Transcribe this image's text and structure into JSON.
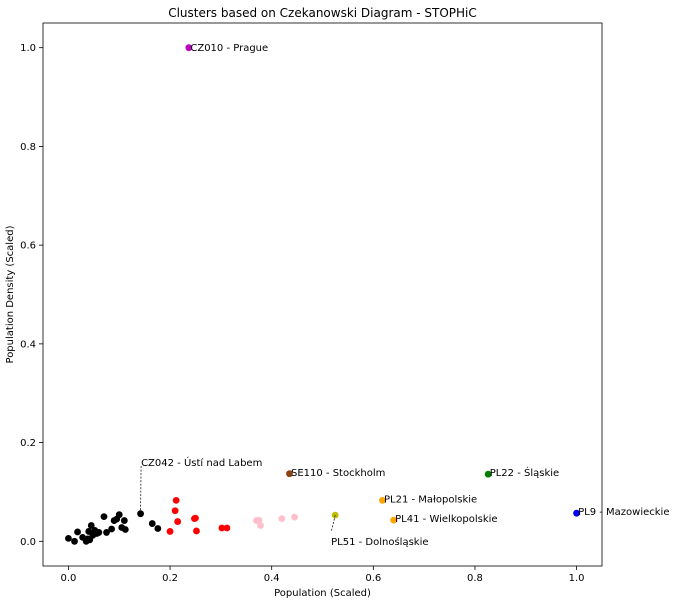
{
  "chart_data": {
    "type": "scatter",
    "title": "Clusters based on Czekanowski Diagram - STOPHiC",
    "xlabel": "Population (Scaled)",
    "ylabel": "Population Density (Scaled)",
    "xlim": [
      -0.05,
      1.05
    ],
    "ylim": [
      -0.05,
      1.05
    ],
    "x_ticks": [
      "0.0",
      "0.2",
      "0.4",
      "0.6",
      "0.8",
      "1.0"
    ],
    "y_ticks": [
      "0.0",
      "0.2",
      "0.4",
      "0.6",
      "0.8",
      "1.0"
    ],
    "grid": false,
    "series": [
      {
        "color": "#000000",
        "points": [
          [
            0.0,
            0.006
          ],
          [
            0.012,
            0.0
          ],
          [
            0.018,
            0.019
          ],
          [
            0.028,
            0.008
          ],
          [
            0.035,
            0.0
          ],
          [
            0.038,
            0.005
          ],
          [
            0.04,
            0.02
          ],
          [
            0.042,
            0.003
          ],
          [
            0.045,
            0.032
          ],
          [
            0.048,
            0.012
          ],
          [
            0.052,
            0.022
          ],
          [
            0.056,
            0.016
          ],
          [
            0.06,
            0.018
          ],
          [
            0.07,
            0.05
          ],
          [
            0.075,
            0.018
          ],
          [
            0.085,
            0.025
          ],
          [
            0.09,
            0.042
          ],
          [
            0.095,
            0.045
          ],
          [
            0.1,
            0.054
          ],
          [
            0.105,
            0.028
          ],
          [
            0.11,
            0.042
          ],
          [
            0.112,
            0.024
          ],
          [
            0.142,
            0.056
          ],
          [
            0.165,
            0.036
          ],
          [
            0.176,
            0.026
          ]
        ]
      },
      {
        "color": "#ff0000",
        "points": [
          [
            0.2,
            0.02
          ],
          [
            0.21,
            0.062
          ],
          [
            0.212,
            0.083
          ],
          [
            0.215,
            0.04
          ],
          [
            0.248,
            0.046
          ],
          [
            0.25,
            0.047
          ],
          [
            0.252,
            0.021
          ],
          [
            0.302,
            0.027
          ],
          [
            0.312,
            0.027
          ]
        ]
      },
      {
        "color": "#ffc0cb",
        "points": [
          [
            0.37,
            0.042
          ],
          [
            0.375,
            0.043
          ],
          [
            0.378,
            0.032
          ],
          [
            0.42,
            0.046
          ],
          [
            0.445,
            0.049
          ]
        ]
      },
      {
        "color": "#bf00bf",
        "points": [
          [
            0.237,
            1.0
          ]
        ]
      },
      {
        "color": "#8b4513",
        "points": [
          [
            0.435,
            0.137
          ]
        ]
      },
      {
        "color": "#bfbf00",
        "points": [
          [
            0.525,
            0.053
          ]
        ]
      },
      {
        "color": "#ffa500",
        "points": [
          [
            0.618,
            0.083
          ],
          [
            0.64,
            0.043
          ]
        ]
      },
      {
        "color": "#008000",
        "points": [
          [
            0.826,
            0.136
          ]
        ]
      },
      {
        "color": "#0000ff",
        "points": [
          [
            1.0,
            0.057
          ]
        ]
      }
    ],
    "annotations": [
      {
        "text": "CZ010 - Prague",
        "point": [
          0.237,
          1.0
        ],
        "label_at": [
          0.24,
          1.0
        ],
        "arrow": false
      },
      {
        "text": "CZ042 - Ústí nad Labem",
        "point": [
          0.142,
          0.056
        ],
        "label_at": [
          0.143,
          0.16
        ],
        "arrow": true
      },
      {
        "text": "SE110 - Stockholm",
        "point": [
          0.435,
          0.137
        ],
        "label_at": [
          0.438,
          0.139
        ],
        "arrow": false
      },
      {
        "text": "PL22 - Śląskie",
        "point": [
          0.826,
          0.136
        ],
        "label_at": [
          0.829,
          0.139
        ],
        "arrow": false
      },
      {
        "text": "PL21 - Małopolskie",
        "point": [
          0.618,
          0.083
        ],
        "label_at": [
          0.621,
          0.086
        ],
        "arrow": false
      },
      {
        "text": "PL41 - Wielkopolskie",
        "point": [
          0.64,
          0.043
        ],
        "label_at": [
          0.643,
          0.046
        ],
        "arrow": false
      },
      {
        "text": "PL9 - Mazowieckie",
        "point": [
          1.0,
          0.057
        ],
        "label_at": [
          1.003,
          0.06
        ],
        "arrow": false
      },
      {
        "text": "PL51 - Dolnośląskie",
        "point": [
          0.525,
          0.053
        ],
        "label_at": [
          0.517,
          0.0
        ],
        "arrow": true
      }
    ]
  }
}
